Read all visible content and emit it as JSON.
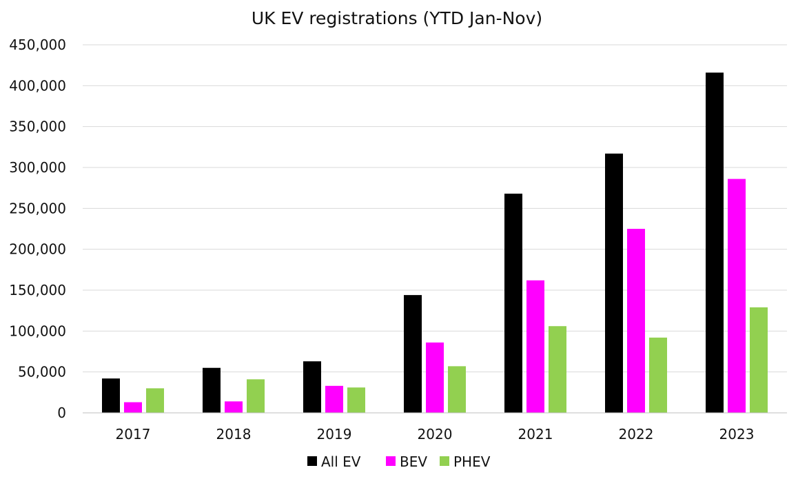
{
  "chart_data": {
    "type": "bar",
    "title": "UK EV registrations (YTD Jan-Nov)",
    "xlabel": "",
    "ylabel": "",
    "ylim": [
      0,
      450000
    ],
    "yticks": [
      0,
      50000,
      100000,
      150000,
      200000,
      250000,
      300000,
      350000,
      400000,
      450000
    ],
    "ytick_labels": [
      "0",
      "50,000",
      "100,000",
      "150,000",
      "200,000",
      "250,000",
      "300,000",
      "350,000",
      "400,000",
      "450,000"
    ],
    "categories": [
      "2017",
      "2018",
      "2019",
      "2020",
      "2021",
      "2022",
      "2023"
    ],
    "grid": true,
    "legend_position": "bottom-center",
    "series": [
      {
        "name": "All EV",
        "color": "#000000",
        "values": [
          42000,
          55000,
          63000,
          144000,
          268000,
          317000,
          416000
        ]
      },
      {
        "name": "BEV",
        "color": "#ff00ff",
        "values": [
          13000,
          14000,
          33000,
          86000,
          162000,
          225000,
          286000
        ]
      },
      {
        "name": "PHEV",
        "color": "#92d050",
        "values": [
          30000,
          41000,
          31000,
          57000,
          106000,
          92000,
          129000
        ]
      }
    ]
  }
}
